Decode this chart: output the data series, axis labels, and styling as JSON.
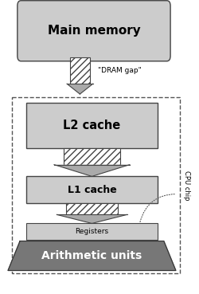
{
  "white": "#ffffff",
  "light_gray": "#cccccc",
  "mid_gray": "#aaaaaa",
  "dark_gray": "#777777",
  "edge_color": "#444444",
  "main_memory_label": "Main memory",
  "l2_label": "L2 cache",
  "l1_label": "L1 cache",
  "registers_label": "Registers",
  "arith_label": "Arithmetic units",
  "dram_label": "\"DRAM gap\"",
  "cpu_label": "CPU chip",
  "fig_width": 2.51,
  "fig_height": 3.69,
  "dpi": 100
}
